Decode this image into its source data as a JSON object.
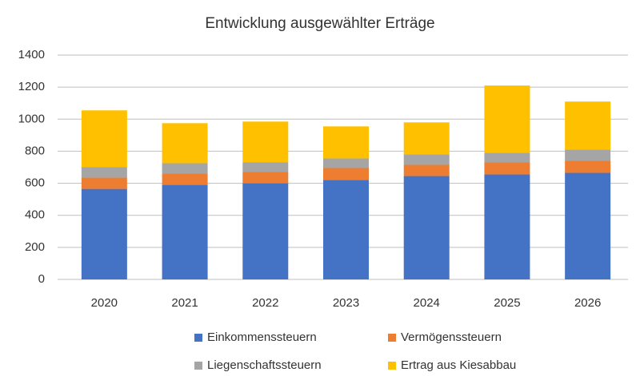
{
  "chart_data": {
    "type": "stacked_bar",
    "title": "Entwicklung ausgewählter Erträge",
    "categories": [
      "2020",
      "2021",
      "2022",
      "2023",
      "2024",
      "2025",
      "2026"
    ],
    "series": [
      {
        "name": "Einkommenssteuern",
        "color": "#4472c4",
        "values": [
          565,
          590,
          600,
          620,
          645,
          655,
          665
        ]
      },
      {
        "name": "Vermögenssteuern",
        "color": "#ed7d31",
        "values": [
          70,
          70,
          70,
          75,
          70,
          75,
          75
        ]
      },
      {
        "name": "Liegenschaftssteuern",
        "color": "#a5a5a5",
        "values": [
          65,
          65,
          60,
          60,
          65,
          60,
          70
        ]
      },
      {
        "name": "Ertrag aus Kiesabbau",
        "color": "#ffc000",
        "values": [
          355,
          250,
          255,
          200,
          200,
          420,
          300
        ]
      }
    ],
    "ylim": [
      0,
      1400
    ],
    "yticks": [
      0,
      200,
      400,
      600,
      800,
      1000,
      1200,
      1400
    ],
    "grid": true
  }
}
